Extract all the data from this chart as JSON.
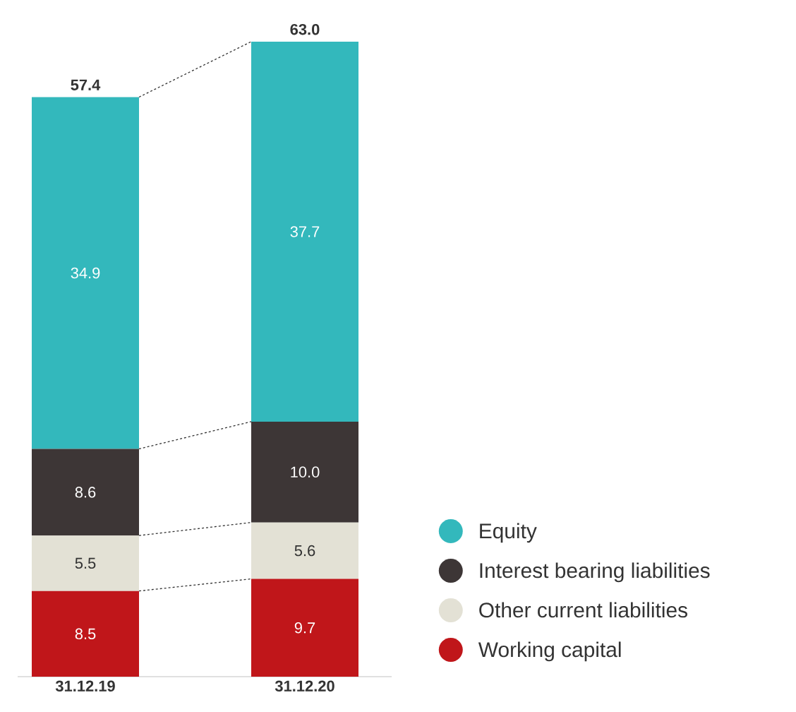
{
  "chart_data": {
    "type": "bar",
    "stacked": true,
    "categories": [
      "31.12.19",
      "31.12.20"
    ],
    "series": [
      {
        "name": "Working capital",
        "color": "#c0161a",
        "values": [
          8.5,
          9.7
        ],
        "value_labels": [
          "8.5",
          "9.7"
        ]
      },
      {
        "name": "Other current liabilities",
        "color": "#e3e1d5",
        "values": [
          5.5,
          5.6
        ],
        "value_labels": [
          "5.5",
          "5.6"
        ]
      },
      {
        "name": "Interest bearing liabilities",
        "color": "#3d3636",
        "values": [
          8.6,
          10.0
        ],
        "value_labels": [
          "8.6",
          "10.0"
        ]
      },
      {
        "name": "Equity",
        "color": "#33b8bc",
        "values": [
          34.9,
          37.7
        ],
        "value_labels": [
          "34.9",
          "37.7"
        ]
      }
    ],
    "totals": [
      "57.4",
      "63.0"
    ],
    "legend": "bottom right"
  }
}
